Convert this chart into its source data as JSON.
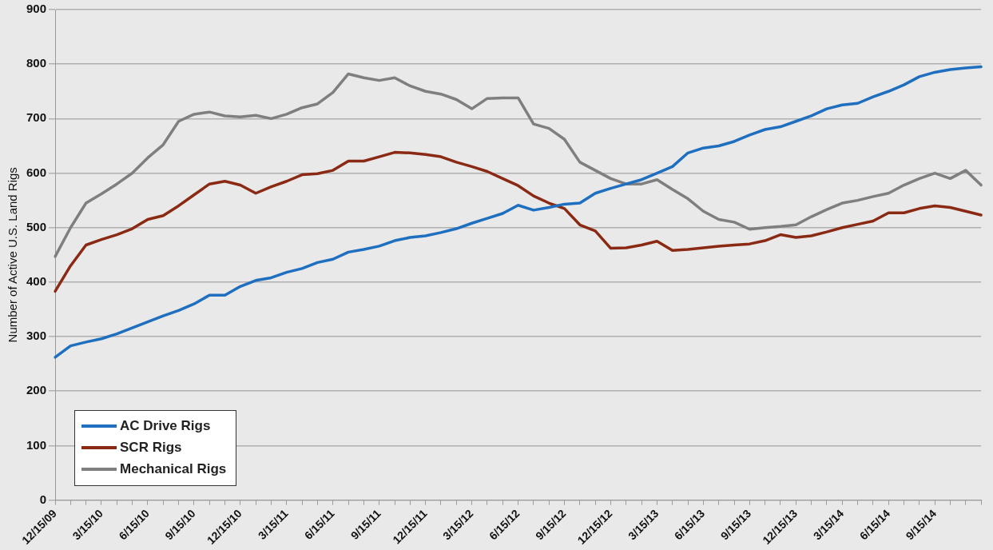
{
  "chart_data": {
    "type": "line",
    "ylabel": "Number of Active U.S. Land Rigs",
    "categories": [
      "12/15/09",
      null,
      null,
      "3/15/10",
      null,
      null,
      "6/15/10",
      null,
      null,
      "9/15/10",
      null,
      null,
      "12/15/10",
      null,
      null,
      "3/15/11",
      null,
      null,
      "6/15/11",
      null,
      null,
      "9/15/11",
      null,
      null,
      "12/15/11",
      null,
      null,
      "3/15/12",
      null,
      null,
      "6/15/12",
      null,
      null,
      "9/15/12",
      null,
      null,
      "12/15/12",
      null,
      null,
      "3/15/13",
      null,
      null,
      "6/15/13",
      null,
      null,
      "9/15/13",
      null,
      null,
      "12/15/13",
      null,
      null,
      "3/15/14",
      null,
      null,
      "6/15/14",
      null,
      null,
      "9/15/14",
      null,
      null,
      null
    ],
    "series": [
      {
        "name": "AC Drive Rigs",
        "color": "#1f6fc0",
        "values": [
          262,
          283,
          290,
          296,
          305,
          316,
          327,
          338,
          348,
          360,
          376,
          376,
          392,
          403,
          408,
          418,
          425,
          436,
          442,
          455,
          460,
          466,
          476,
          482,
          485,
          491,
          498,
          508,
          517,
          526,
          541,
          532,
          537,
          543,
          545,
          563,
          572,
          580,
          588,
          600,
          612,
          637,
          646,
          650,
          658,
          670,
          680,
          685,
          695,
          705,
          718,
          725,
          728,
          740,
          750,
          762,
          777,
          785,
          790,
          793,
          795
        ]
      },
      {
        "name": "SCR Rigs",
        "color": "#8b2a14",
        "values": [
          383,
          430,
          468,
          478,
          487,
          498,
          515,
          522,
          540,
          560,
          580,
          585,
          578,
          563,
          575,
          585,
          597,
          599,
          605,
          622,
          622,
          630,
          638,
          637,
          634,
          630,
          620,
          612,
          603,
          590,
          577,
          558,
          545,
          535,
          505,
          494,
          462,
          463,
          468,
          475,
          458,
          460,
          463,
          466,
          468,
          470,
          476,
          487,
          482,
          485,
          492,
          500,
          506,
          512,
          527,
          527,
          535,
          540,
          537,
          530,
          523
        ]
      },
      {
        "name": "Mechanical Rigs",
        "color": "#7f7f7f",
        "values": [
          447,
          500,
          545,
          562,
          580,
          600,
          628,
          652,
          695,
          708,
          712,
          705,
          703,
          706,
          700,
          708,
          720,
          727,
          748,
          782,
          775,
          770,
          775,
          760,
          750,
          745,
          735,
          718,
          737,
          738,
          738,
          690,
          682,
          662,
          620,
          605,
          590,
          580,
          580,
          588,
          570,
          553,
          530,
          515,
          510,
          497,
          500,
          502,
          505,
          520,
          533,
          545,
          550,
          557,
          563,
          578,
          590,
          600,
          590,
          605,
          578
        ]
      }
    ],
    "ylim": [
      0,
      900
    ],
    "yticks": [
      0,
      100,
      200,
      300,
      400,
      500,
      600,
      700,
      800,
      900
    ],
    "grid": "y",
    "legend": "bottom left",
    "marker": "none",
    "line_style": "solid"
  }
}
